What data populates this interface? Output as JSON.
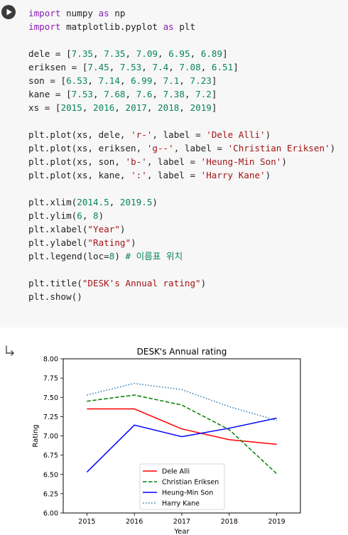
{
  "code_lines": [
    [
      {
        "t": "import",
        "c": "kw"
      },
      {
        "t": " numpy "
      },
      {
        "t": "as",
        "c": "kw"
      },
      {
        "t": " np"
      }
    ],
    [
      {
        "t": "import",
        "c": "kw"
      },
      {
        "t": " matplotlib.pyplot "
      },
      {
        "t": "as",
        "c": "kw"
      },
      {
        "t": " plt"
      }
    ],
    [],
    [
      {
        "t": "dele = ["
      },
      {
        "t": "7.35",
        "c": "num"
      },
      {
        "t": ", "
      },
      {
        "t": "7.35",
        "c": "num"
      },
      {
        "t": ", "
      },
      {
        "t": "7.09",
        "c": "num"
      },
      {
        "t": ", "
      },
      {
        "t": "6.95",
        "c": "num"
      },
      {
        "t": ", "
      },
      {
        "t": "6.89",
        "c": "num"
      },
      {
        "t": "]"
      }
    ],
    [
      {
        "t": "eriksen = ["
      },
      {
        "t": "7.45",
        "c": "num"
      },
      {
        "t": ", "
      },
      {
        "t": "7.53",
        "c": "num"
      },
      {
        "t": ", "
      },
      {
        "t": "7.4",
        "c": "num"
      },
      {
        "t": ", "
      },
      {
        "t": "7.08",
        "c": "num"
      },
      {
        "t": ", "
      },
      {
        "t": "6.51",
        "c": "num"
      },
      {
        "t": "]"
      }
    ],
    [
      {
        "t": "son = ["
      },
      {
        "t": "6.53",
        "c": "num"
      },
      {
        "t": ", "
      },
      {
        "t": "7.14",
        "c": "num"
      },
      {
        "t": ", "
      },
      {
        "t": "6.99",
        "c": "num"
      },
      {
        "t": ", "
      },
      {
        "t": "7.1",
        "c": "num"
      },
      {
        "t": ", "
      },
      {
        "t": "7.23",
        "c": "num"
      },
      {
        "t": "]"
      }
    ],
    [
      {
        "t": "kane = ["
      },
      {
        "t": "7.53",
        "c": "num"
      },
      {
        "t": ", "
      },
      {
        "t": "7.68",
        "c": "num"
      },
      {
        "t": ", "
      },
      {
        "t": "7.6",
        "c": "num"
      },
      {
        "t": ", "
      },
      {
        "t": "7.38",
        "c": "num"
      },
      {
        "t": ", "
      },
      {
        "t": "7.2",
        "c": "num"
      },
      {
        "t": "]"
      }
    ],
    [
      {
        "t": "xs = ["
      },
      {
        "t": "2015",
        "c": "num"
      },
      {
        "t": ", "
      },
      {
        "t": "2016",
        "c": "num"
      },
      {
        "t": ", "
      },
      {
        "t": "2017",
        "c": "num"
      },
      {
        "t": ", "
      },
      {
        "t": "2018",
        "c": "num"
      },
      {
        "t": ", "
      },
      {
        "t": "2019",
        "c": "num"
      },
      {
        "t": "]"
      }
    ],
    [],
    [
      {
        "t": "plt.plot(xs, dele, "
      },
      {
        "t": "'r-'",
        "c": "str"
      },
      {
        "t": ", label = "
      },
      {
        "t": "'Dele Alli'",
        "c": "str"
      },
      {
        "t": ")"
      }
    ],
    [
      {
        "t": "plt.plot(xs, eriksen, "
      },
      {
        "t": "'g--'",
        "c": "str"
      },
      {
        "t": ", label = "
      },
      {
        "t": "'Christian Eriksen'",
        "c": "str"
      },
      {
        "t": ")"
      }
    ],
    [
      {
        "t": "plt.plot(xs, son, "
      },
      {
        "t": "'b-'",
        "c": "str"
      },
      {
        "t": ", label = "
      },
      {
        "t": "'Heung-Min Son'",
        "c": "str"
      },
      {
        "t": ")"
      }
    ],
    [
      {
        "t": "plt.plot(xs, kane, "
      },
      {
        "t": "':'",
        "c": "str"
      },
      {
        "t": ", label = "
      },
      {
        "t": "'Harry Kane'",
        "c": "str"
      },
      {
        "t": ")"
      }
    ],
    [],
    [
      {
        "t": "plt.xlim("
      },
      {
        "t": "2014.5",
        "c": "num"
      },
      {
        "t": ", "
      },
      {
        "t": "2019.5",
        "c": "num"
      },
      {
        "t": ")"
      }
    ],
    [
      {
        "t": "plt.ylim("
      },
      {
        "t": "6",
        "c": "num"
      },
      {
        "t": ", "
      },
      {
        "t": "8",
        "c": "num"
      },
      {
        "t": ")"
      }
    ],
    [
      {
        "t": "plt.xlabel("
      },
      {
        "t": "\"Year\"",
        "c": "str"
      },
      {
        "t": ")"
      }
    ],
    [
      {
        "t": "plt.ylabel("
      },
      {
        "t": "\"Rating\"",
        "c": "str"
      },
      {
        "t": ")"
      }
    ],
    [
      {
        "t": "plt.legend(loc="
      },
      {
        "t": "8",
        "c": "num"
      },
      {
        "t": ") "
      },
      {
        "t": "# 이름표 위치",
        "c": "num"
      }
    ],
    [],
    [
      {
        "t": "plt.title("
      },
      {
        "t": "\"DESK's Annual rating\"",
        "c": "str"
      },
      {
        "t": ")"
      }
    ],
    [
      {
        "t": "plt.show()"
      }
    ]
  ],
  "icons": {
    "run": "play-icon",
    "output": "output-arrow-icon"
  },
  "chart_data": {
    "type": "line",
    "title": "DESK's Annual rating",
    "xlabel": "Year",
    "ylabel": "Rating",
    "x": [
      2015,
      2016,
      2017,
      2018,
      2019
    ],
    "xlim": [
      2014.5,
      2019.5
    ],
    "ylim": [
      6,
      8
    ],
    "xticks": [
      "2015",
      "2016",
      "2017",
      "2018",
      "2019"
    ],
    "yticks": [
      "6.00",
      "6.25",
      "6.50",
      "6.75",
      "7.00",
      "7.25",
      "7.50",
      "7.75",
      "8.00"
    ],
    "legend_loc": "lower center",
    "series": [
      {
        "name": "Dele Alli",
        "values": [
          7.35,
          7.35,
          7.09,
          6.95,
          6.89
        ],
        "color": "#ff0000",
        "style": "solid"
      },
      {
        "name": "Christian Eriksen",
        "values": [
          7.45,
          7.53,
          7.4,
          7.08,
          6.51
        ],
        "color": "#008000",
        "style": "dashed"
      },
      {
        "name": "Heung-Min Son",
        "values": [
          6.53,
          7.14,
          6.99,
          7.1,
          7.23
        ],
        "color": "#0000ff",
        "style": "solid"
      },
      {
        "name": "Harry Kane",
        "values": [
          7.53,
          7.68,
          7.6,
          7.38,
          7.2
        ],
        "color": "#1f77b4",
        "style": "dotted"
      }
    ]
  }
}
